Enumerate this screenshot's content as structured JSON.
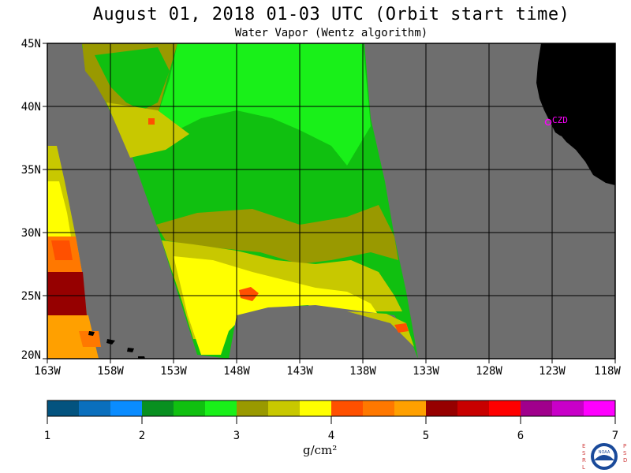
{
  "title": "August 01, 2018  01-03 UTC  (Orbit start time)",
  "subtitle": "Water Vapor (Wentz algorithm)",
  "map": {
    "lat_labels": [
      "45N",
      "40N",
      "35N",
      "30N",
      "25N",
      "20N"
    ],
    "lon_labels": [
      "163W",
      "158W",
      "153W",
      "148W",
      "143W",
      "138W",
      "133W",
      "128W",
      "123W",
      "118W"
    ],
    "station_label": "CZD",
    "colors": {
      "ocean_no_data": "#6e6e6e",
      "land": "#000000",
      "station": "#ff00ff"
    }
  },
  "colorbar": {
    "tick_labels": [
      "1",
      "2",
      "3",
      "4",
      "5",
      "6",
      "7"
    ],
    "unit": "g/cm²",
    "bins": [
      "#03537f",
      "#0a6fbd",
      "#0a8cff",
      "#089020",
      "#10c010",
      "#19f019",
      "#999900",
      "#c8c800",
      "#ffff00",
      "#ff5000",
      "#ff7800",
      "#ffa000",
      "#960000",
      "#c80000",
      "#ff0000",
      "#a0008c",
      "#c800c8",
      "#ff00ff"
    ]
  },
  "logo": {
    "left_letters": "ESRL",
    "right_letters": "PSD",
    "center": "NOAA"
  }
}
